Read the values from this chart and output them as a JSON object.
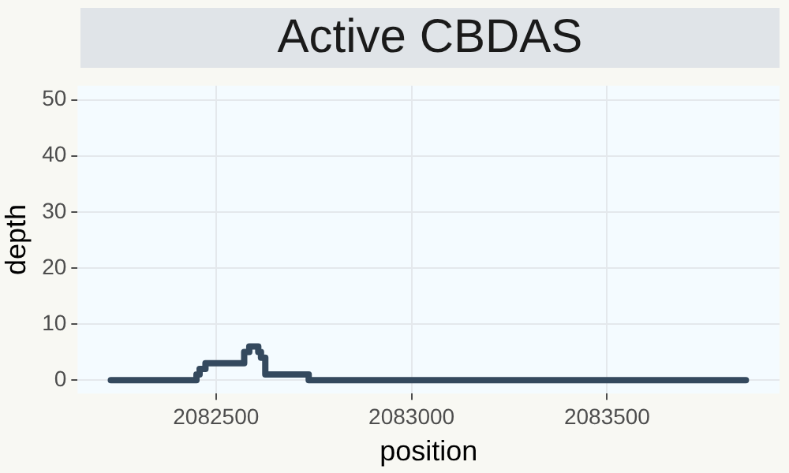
{
  "chart_data": {
    "type": "step",
    "title": "Active CBDAS",
    "xlabel": "position",
    "ylabel": "depth",
    "series": [
      {
        "color": "#34495e",
        "x": [
          2082231,
          2082450,
          2082458,
          2082473,
          2082572,
          2082585,
          2082608,
          2082615,
          2082626,
          2082737,
          2083855
        ],
        "values": [
          0,
          1,
          2,
          3,
          5,
          6,
          5,
          4,
          1,
          0,
          0
        ]
      }
    ],
    "xlim": [
      2082146,
      2083941
    ],
    "xticks": [
      2082500,
      2083000,
      2083500
    ],
    "ylim": [
      -2.4,
      52.5
    ],
    "yticks": [
      0,
      10,
      20,
      30,
      40,
      50
    ],
    "grid": true,
    "legend": false,
    "marker": "none",
    "line_style": "solid"
  }
}
